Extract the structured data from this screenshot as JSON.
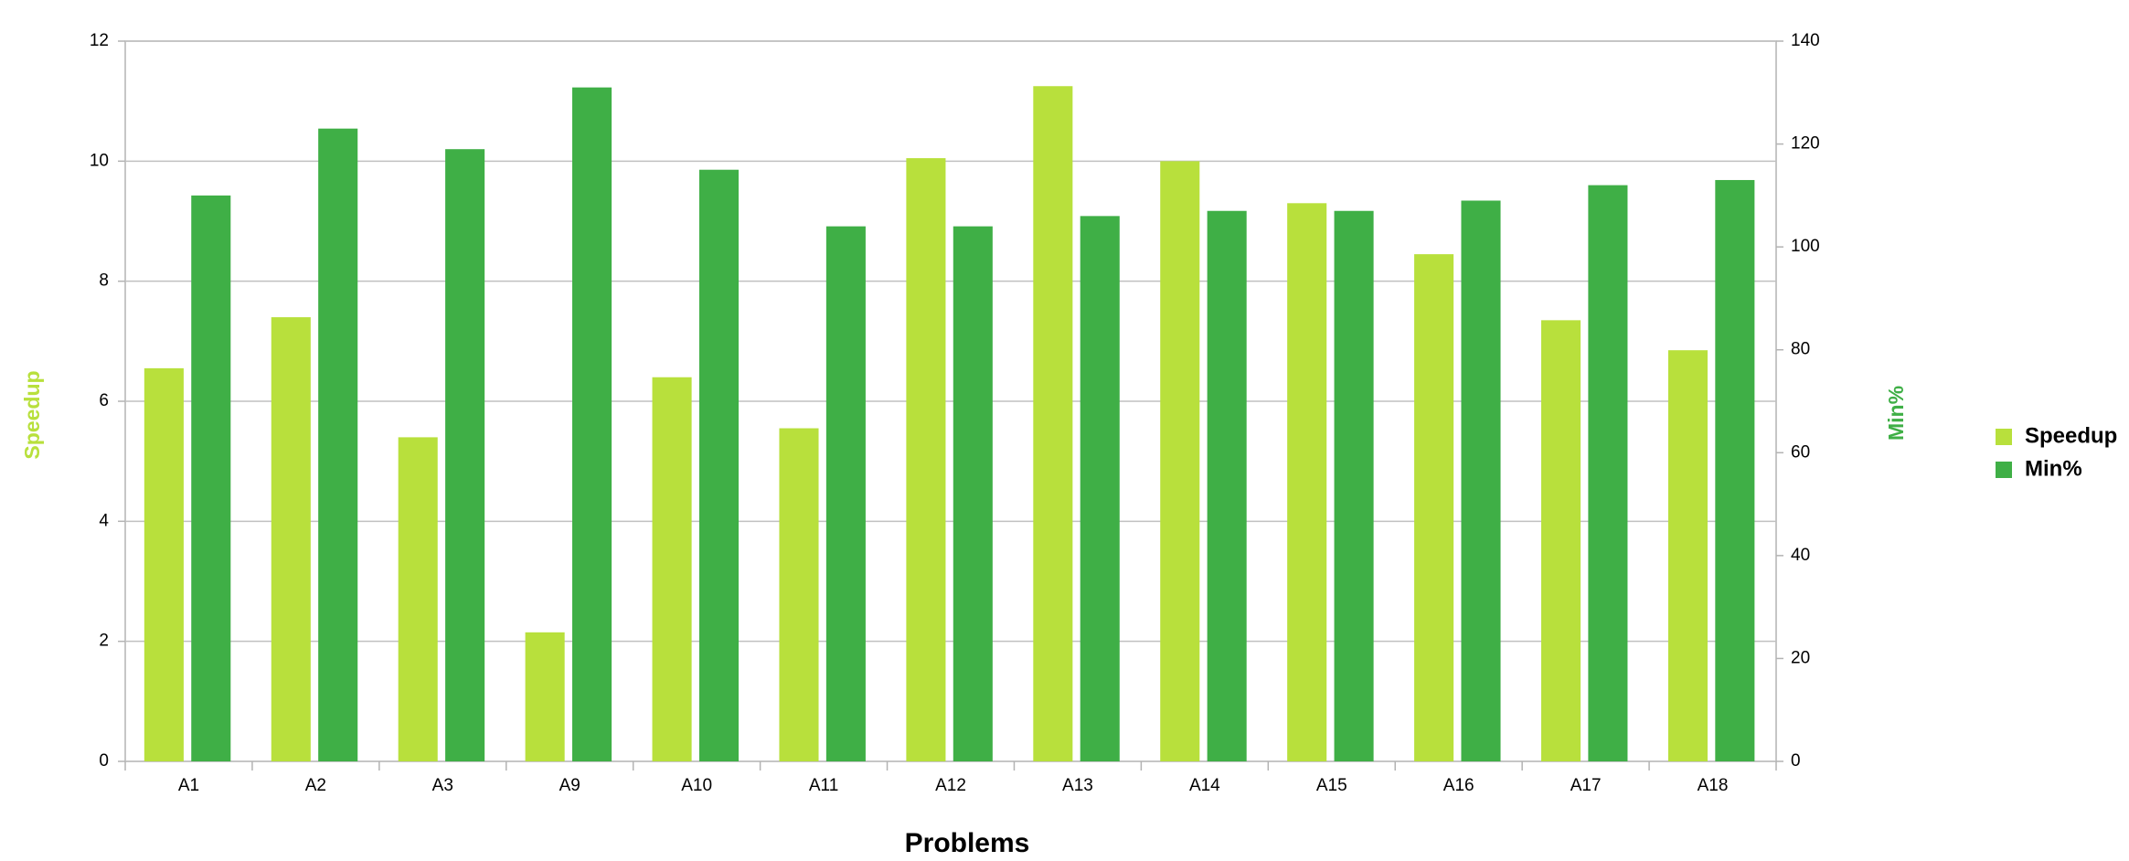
{
  "chart_data": {
    "type": "bar",
    "x_label": "Problems",
    "y_label": "Speedup",
    "y2_label": "Min%",
    "categories": [
      "A1",
      "A2",
      "A3",
      "A9",
      "A10",
      "A11",
      "A12",
      "A13",
      "A14",
      "A15",
      "A16",
      "A17",
      "A18"
    ],
    "series": [
      {
        "name": "Speedup",
        "color": "#b8e03c",
        "values": [
          6.55,
          7.4,
          5.4,
          2.15,
          6.4,
          5.55,
          10.05,
          11.25,
          10.0,
          9.3,
          8.45,
          7.35,
          6.85
        ]
      },
      {
        "name": "Min%",
        "color": "#3faf46",
        "axis": "y2",
        "values": [
          110,
          123,
          119,
          131,
          115,
          104,
          104,
          106,
          107,
          107,
          109,
          112,
          113
        ]
      }
    ],
    "ylim": [
      0,
      12
    ],
    "yticks": [
      0,
      2,
      4,
      6,
      8,
      10,
      12
    ],
    "y2lim": [
      0,
      140
    ],
    "y2ticks": [
      0,
      20,
      40,
      60,
      80,
      100,
      120,
      140
    ],
    "grid": true,
    "legend": "right"
  }
}
